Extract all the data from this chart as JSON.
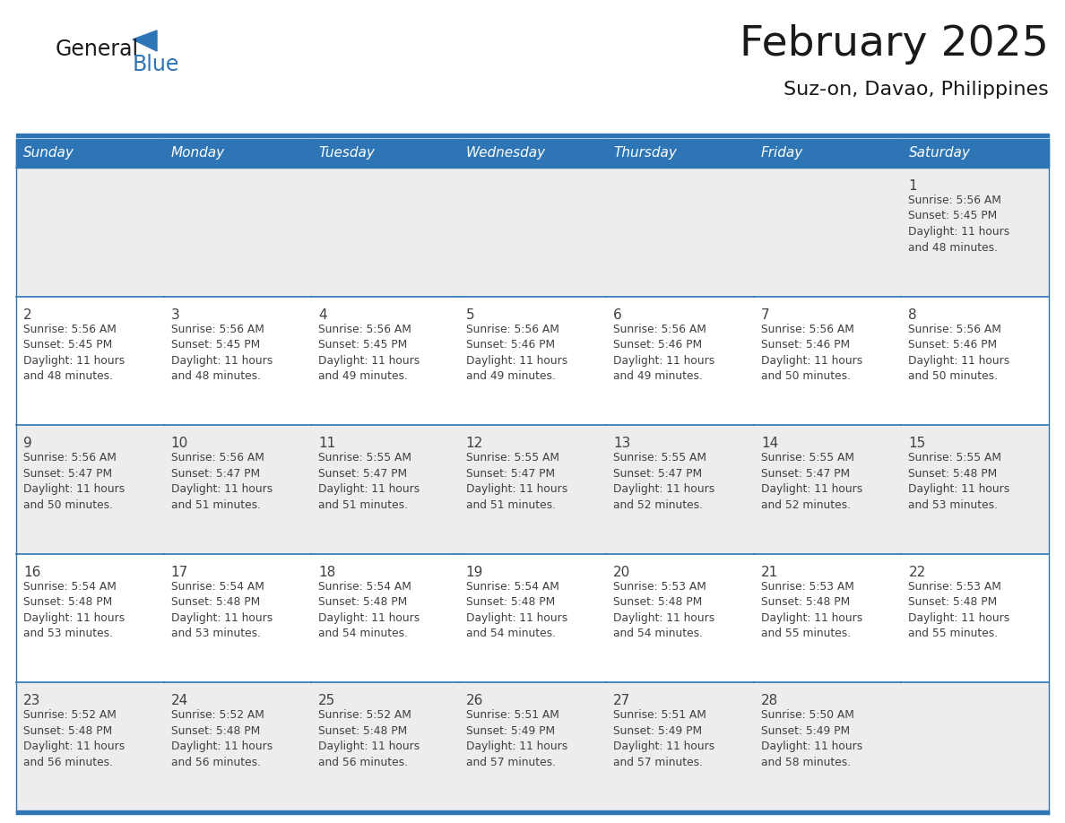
{
  "title": "February 2025",
  "subtitle": "Suz-on, Davao, Philippines",
  "days_of_week": [
    "Sunday",
    "Monday",
    "Tuesday",
    "Wednesday",
    "Thursday",
    "Friday",
    "Saturday"
  ],
  "header_bg": "#2E75B6",
  "header_text": "#FFFFFF",
  "cell_bg_even": "#EDEDED",
  "cell_bg_odd": "#FFFFFF",
  "border_color": "#2E75B6",
  "day_num_color": "#404040",
  "info_text_color": "#404040",
  "title_color": "#1A1A1A",
  "logo_text_color": "#1A1A1A",
  "logo_blue_color": "#2E75B6",
  "calendar_data": [
    [
      null,
      null,
      null,
      null,
      null,
      null,
      {
        "day": 1,
        "sunrise": "5:56 AM",
        "sunset": "5:45 PM",
        "daylight": "11 hours and 48 minutes."
      }
    ],
    [
      {
        "day": 2,
        "sunrise": "5:56 AM",
        "sunset": "5:45 PM",
        "daylight": "11 hours and 48 minutes."
      },
      {
        "day": 3,
        "sunrise": "5:56 AM",
        "sunset": "5:45 PM",
        "daylight": "11 hours and 48 minutes."
      },
      {
        "day": 4,
        "sunrise": "5:56 AM",
        "sunset": "5:45 PM",
        "daylight": "11 hours and 49 minutes."
      },
      {
        "day": 5,
        "sunrise": "5:56 AM",
        "sunset": "5:46 PM",
        "daylight": "11 hours and 49 minutes."
      },
      {
        "day": 6,
        "sunrise": "5:56 AM",
        "sunset": "5:46 PM",
        "daylight": "11 hours and 49 minutes."
      },
      {
        "day": 7,
        "sunrise": "5:56 AM",
        "sunset": "5:46 PM",
        "daylight": "11 hours and 50 minutes."
      },
      {
        "day": 8,
        "sunrise": "5:56 AM",
        "sunset": "5:46 PM",
        "daylight": "11 hours and 50 minutes."
      }
    ],
    [
      {
        "day": 9,
        "sunrise": "5:56 AM",
        "sunset": "5:47 PM",
        "daylight": "11 hours and 50 minutes."
      },
      {
        "day": 10,
        "sunrise": "5:56 AM",
        "sunset": "5:47 PM",
        "daylight": "11 hours and 51 minutes."
      },
      {
        "day": 11,
        "sunrise": "5:55 AM",
        "sunset": "5:47 PM",
        "daylight": "11 hours and 51 minutes."
      },
      {
        "day": 12,
        "sunrise": "5:55 AM",
        "sunset": "5:47 PM",
        "daylight": "11 hours and 51 minutes."
      },
      {
        "day": 13,
        "sunrise": "5:55 AM",
        "sunset": "5:47 PM",
        "daylight": "11 hours and 52 minutes."
      },
      {
        "day": 14,
        "sunrise": "5:55 AM",
        "sunset": "5:47 PM",
        "daylight": "11 hours and 52 minutes."
      },
      {
        "day": 15,
        "sunrise": "5:55 AM",
        "sunset": "5:48 PM",
        "daylight": "11 hours and 53 minutes."
      }
    ],
    [
      {
        "day": 16,
        "sunrise": "5:54 AM",
        "sunset": "5:48 PM",
        "daylight": "11 hours and 53 minutes."
      },
      {
        "day": 17,
        "sunrise": "5:54 AM",
        "sunset": "5:48 PM",
        "daylight": "11 hours and 53 minutes."
      },
      {
        "day": 18,
        "sunrise": "5:54 AM",
        "sunset": "5:48 PM",
        "daylight": "11 hours and 54 minutes."
      },
      {
        "day": 19,
        "sunrise": "5:54 AM",
        "sunset": "5:48 PM",
        "daylight": "11 hours and 54 minutes."
      },
      {
        "day": 20,
        "sunrise": "5:53 AM",
        "sunset": "5:48 PM",
        "daylight": "11 hours and 54 minutes."
      },
      {
        "day": 21,
        "sunrise": "5:53 AM",
        "sunset": "5:48 PM",
        "daylight": "11 hours and 55 minutes."
      },
      {
        "day": 22,
        "sunrise": "5:53 AM",
        "sunset": "5:48 PM",
        "daylight": "11 hours and 55 minutes."
      }
    ],
    [
      {
        "day": 23,
        "sunrise": "5:52 AM",
        "sunset": "5:48 PM",
        "daylight": "11 hours and 56 minutes."
      },
      {
        "day": 24,
        "sunrise": "5:52 AM",
        "sunset": "5:48 PM",
        "daylight": "11 hours and 56 minutes."
      },
      {
        "day": 25,
        "sunrise": "5:52 AM",
        "sunset": "5:48 PM",
        "daylight": "11 hours and 56 minutes."
      },
      {
        "day": 26,
        "sunrise": "5:51 AM",
        "sunset": "5:49 PM",
        "daylight": "11 hours and 57 minutes."
      },
      {
        "day": 27,
        "sunrise": "5:51 AM",
        "sunset": "5:49 PM",
        "daylight": "11 hours and 57 minutes."
      },
      {
        "day": 28,
        "sunrise": "5:50 AM",
        "sunset": "5:49 PM",
        "daylight": "11 hours and 58 minutes."
      },
      null
    ]
  ]
}
